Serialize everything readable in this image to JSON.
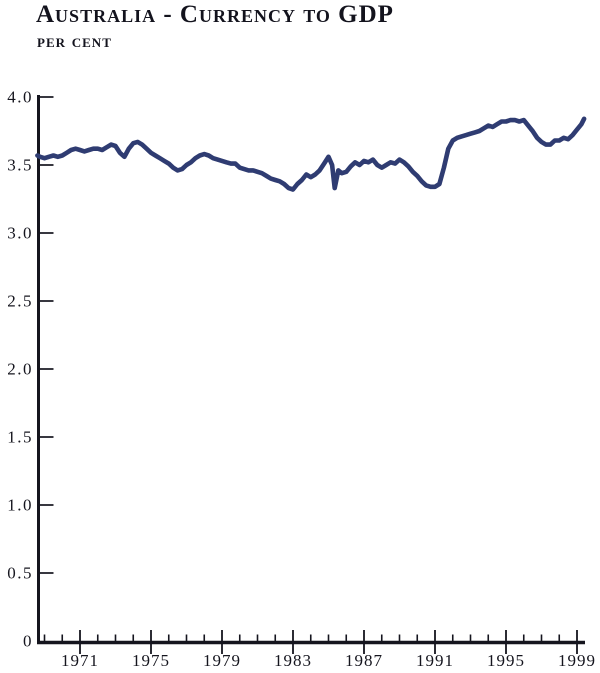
{
  "title": "Australia - Currency to GDP",
  "subtitle": "per cent",
  "chart_data": {
    "type": "line",
    "title": "Australia - Currency to GDP",
    "ylabel": "per cent",
    "xlabel": "",
    "ylim": [
      0,
      4.0
    ],
    "xlim": [
      1968.5,
      1999.5
    ],
    "grid": false,
    "legend_position": "none",
    "colors": {
      "line": "#2f3c72",
      "axis": "#15151e",
      "text": "#13131d",
      "background": "#ffffff"
    },
    "y_ticks": [
      {
        "label": "4.0",
        "value": 4.0,
        "tick": true
      },
      {
        "label": "3.5",
        "value": 3.5,
        "tick": true
      },
      {
        "label": "3.0",
        "value": 3.0,
        "tick": true
      },
      {
        "label": "2.5",
        "value": 2.5,
        "tick": true
      },
      {
        "label": "2.0",
        "value": 2.0,
        "tick": true
      },
      {
        "label": "1.5",
        "value": 1.5,
        "tick": true
      },
      {
        "label": "1.0",
        "value": 1.0,
        "tick": true
      },
      {
        "label": "0.5",
        "value": 0.5,
        "tick": true
      },
      {
        "label": "0",
        "value": 0.0,
        "tick": false
      }
    ],
    "x_major_ticks": [
      {
        "label": "1971",
        "year": 1971
      },
      {
        "label": "1975",
        "year": 1975
      },
      {
        "label": "1979",
        "year": 1979
      },
      {
        "label": "1983",
        "year": 1983
      },
      {
        "label": "1987",
        "year": 1987
      },
      {
        "label": "1991",
        "year": 1991
      },
      {
        "label": "1995",
        "year": 1995
      },
      {
        "label": "1999",
        "year": 1999
      }
    ],
    "x_minor_tick_years": [
      1969,
      1970,
      1972,
      1973,
      1974,
      1976,
      1977,
      1978,
      1980,
      1981,
      1982,
      1984,
      1985,
      1986,
      1988,
      1989,
      1990,
      1992,
      1993,
      1994,
      1996,
      1997,
      1998
    ],
    "series": [
      {
        "name": "Currency to GDP ratio (per cent)",
        "points": [
          [
            1968.6,
            3.57
          ],
          [
            1968.75,
            3.56
          ],
          [
            1969.0,
            3.55
          ],
          [
            1969.25,
            3.56
          ],
          [
            1969.5,
            3.57
          ],
          [
            1969.75,
            3.56
          ],
          [
            1970.0,
            3.57
          ],
          [
            1970.25,
            3.59
          ],
          [
            1970.5,
            3.61
          ],
          [
            1970.75,
            3.62
          ],
          [
            1971.0,
            3.61
          ],
          [
            1971.25,
            3.6
          ],
          [
            1971.5,
            3.61
          ],
          [
            1971.75,
            3.62
          ],
          [
            1972.0,
            3.62
          ],
          [
            1972.25,
            3.61
          ],
          [
            1972.5,
            3.63
          ],
          [
            1972.75,
            3.65
          ],
          [
            1973.0,
            3.64
          ],
          [
            1973.25,
            3.59
          ],
          [
            1973.5,
            3.56
          ],
          [
            1973.75,
            3.62
          ],
          [
            1974.0,
            3.66
          ],
          [
            1974.25,
            3.67
          ],
          [
            1974.5,
            3.65
          ],
          [
            1974.75,
            3.62
          ],
          [
            1975.0,
            3.59
          ],
          [
            1975.25,
            3.57
          ],
          [
            1975.5,
            3.55
          ],
          [
            1975.75,
            3.53
          ],
          [
            1976.0,
            3.51
          ],
          [
            1976.25,
            3.48
          ],
          [
            1976.5,
            3.46
          ],
          [
            1976.75,
            3.47
          ],
          [
            1977.0,
            3.5
          ],
          [
            1977.25,
            3.52
          ],
          [
            1977.5,
            3.55
          ],
          [
            1977.75,
            3.57
          ],
          [
            1978.0,
            3.58
          ],
          [
            1978.25,
            3.57
          ],
          [
            1978.5,
            3.55
          ],
          [
            1978.75,
            3.54
          ],
          [
            1979.0,
            3.53
          ],
          [
            1979.25,
            3.52
          ],
          [
            1979.5,
            3.51
          ],
          [
            1979.75,
            3.51
          ],
          [
            1980.0,
            3.48
          ],
          [
            1980.25,
            3.47
          ],
          [
            1980.5,
            3.46
          ],
          [
            1980.75,
            3.46
          ],
          [
            1981.0,
            3.45
          ],
          [
            1981.25,
            3.44
          ],
          [
            1981.5,
            3.42
          ],
          [
            1981.75,
            3.4
          ],
          [
            1982.0,
            3.39
          ],
          [
            1982.25,
            3.38
          ],
          [
            1982.5,
            3.36
          ],
          [
            1982.75,
            3.33
          ],
          [
            1983.0,
            3.32
          ],
          [
            1983.25,
            3.36
          ],
          [
            1983.5,
            3.39
          ],
          [
            1983.75,
            3.43
          ],
          [
            1984.0,
            3.41
          ],
          [
            1984.25,
            3.43
          ],
          [
            1984.5,
            3.46
          ],
          [
            1984.75,
            3.51
          ],
          [
            1985.0,
            3.56
          ],
          [
            1985.2,
            3.5
          ],
          [
            1985.35,
            3.33
          ],
          [
            1985.55,
            3.46
          ],
          [
            1985.75,
            3.44
          ],
          [
            1986.0,
            3.45
          ],
          [
            1986.25,
            3.49
          ],
          [
            1986.5,
            3.52
          ],
          [
            1986.75,
            3.5
          ],
          [
            1987.0,
            3.53
          ],
          [
            1987.25,
            3.52
          ],
          [
            1987.5,
            3.54
          ],
          [
            1987.75,
            3.5
          ],
          [
            1988.0,
            3.48
          ],
          [
            1988.25,
            3.5
          ],
          [
            1988.5,
            3.52
          ],
          [
            1988.75,
            3.51
          ],
          [
            1989.0,
            3.54
          ],
          [
            1989.25,
            3.52
          ],
          [
            1989.5,
            3.49
          ],
          [
            1989.75,
            3.45
          ],
          [
            1990.0,
            3.42
          ],
          [
            1990.25,
            3.38
          ],
          [
            1990.5,
            3.35
          ],
          [
            1990.75,
            3.34
          ],
          [
            1991.0,
            3.34
          ],
          [
            1991.25,
            3.36
          ],
          [
            1991.5,
            3.48
          ],
          [
            1991.75,
            3.62
          ],
          [
            1992.0,
            3.68
          ],
          [
            1992.25,
            3.7
          ],
          [
            1992.5,
            3.71
          ],
          [
            1992.75,
            3.72
          ],
          [
            1993.0,
            3.73
          ],
          [
            1993.25,
            3.74
          ],
          [
            1993.5,
            3.75
          ],
          [
            1993.75,
            3.77
          ],
          [
            1994.0,
            3.79
          ],
          [
            1994.25,
            3.78
          ],
          [
            1994.5,
            3.8
          ],
          [
            1994.75,
            3.82
          ],
          [
            1995.0,
            3.82
          ],
          [
            1995.25,
            3.83
          ],
          [
            1995.5,
            3.83
          ],
          [
            1995.75,
            3.82
          ],
          [
            1996.0,
            3.83
          ],
          [
            1996.25,
            3.79
          ],
          [
            1996.5,
            3.75
          ],
          [
            1996.75,
            3.7
          ],
          [
            1997.0,
            3.67
          ],
          [
            1997.25,
            3.65
          ],
          [
            1997.5,
            3.65
          ],
          [
            1997.75,
            3.68
          ],
          [
            1998.0,
            3.68
          ],
          [
            1998.25,
            3.7
          ],
          [
            1998.5,
            3.69
          ],
          [
            1998.75,
            3.72
          ],
          [
            1999.0,
            3.76
          ],
          [
            1999.25,
            3.8
          ],
          [
            1999.4,
            3.84
          ]
        ]
      }
    ]
  }
}
